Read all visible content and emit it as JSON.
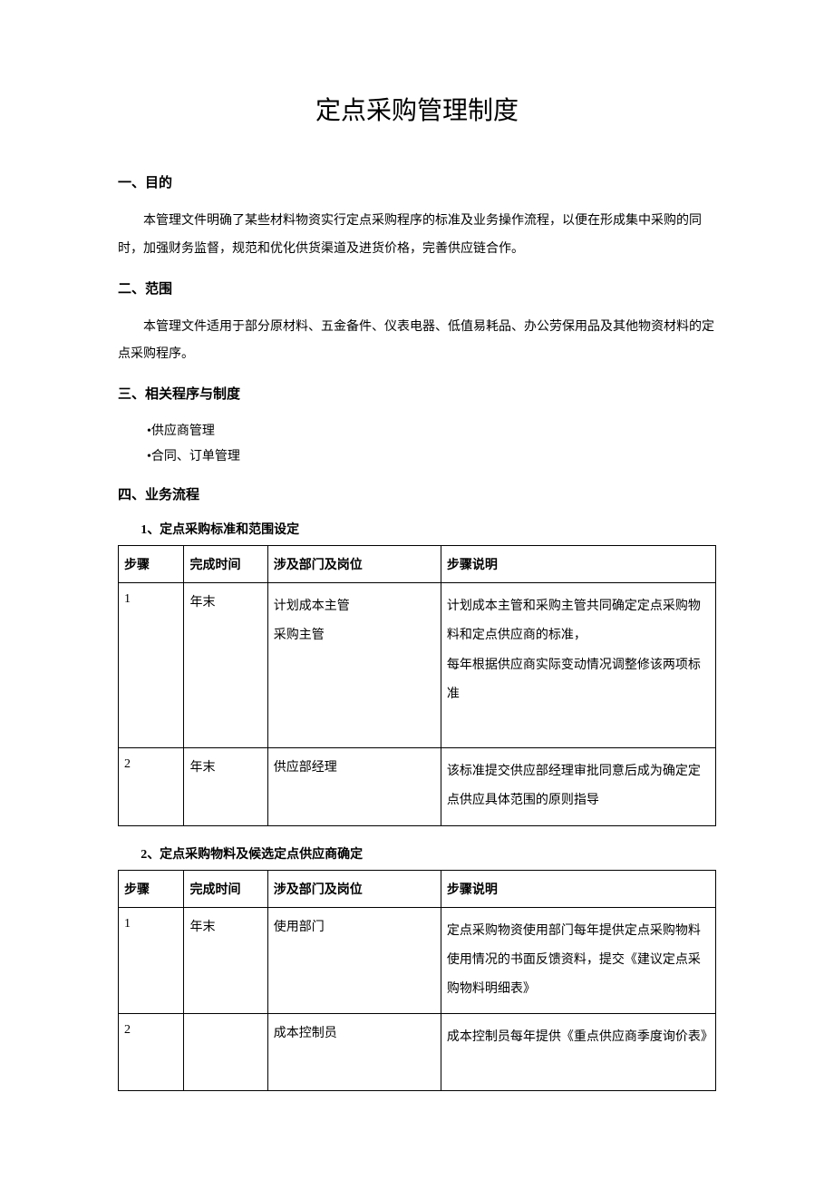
{
  "title": "定点采购管理制度",
  "sections": {
    "s1": {
      "heading": "一、目的",
      "text": "本管理文件明确了某些材料物资实行定点采购程序的标准及业务操作流程，以便在形成集中采购的同时，加强财务监督，规范和优化供货渠道及进货价格，完善供应链合作。"
    },
    "s2": {
      "heading": "二、范围",
      "text": "本管理文件适用于部分原材料、五金备件、仪表电器、低值易耗品、办公劳保用品及其他物资材料的定点采购程序。"
    },
    "s3": {
      "heading": "三、相关程序与制度",
      "bullets": {
        "b1": "•供应商管理",
        "b2": "•合同、订单管理"
      }
    },
    "s4": {
      "heading": "四、业务流程"
    }
  },
  "table1": {
    "title": "1、定点采购标准和范围设定",
    "headers": {
      "h1": "步骤",
      "h2": "完成时间",
      "h3": "涉及部门及岗位",
      "h4": "步骤说明"
    },
    "rows": {
      "r1": {
        "step": "1",
        "time": "年末",
        "dept1": "计划成本主管",
        "dept2": "采购主管",
        "desc1": "计划成本主管和采购主管共同确定定点采购物料和定点供应商的标准，",
        "desc2": "每年根据供应商实际变动情况调整修该两项标准"
      },
      "r2": {
        "step": "2",
        "time": "年末",
        "dept": "供应部经理",
        "desc": "该标准提交供应部经理审批同意后成为确定定点供应具体范围的原则指导"
      }
    }
  },
  "table2": {
    "title": "2、定点采购物料及候选定点供应商确定",
    "headers": {
      "h1": "步骤",
      "h2": "完成时间",
      "h3": "涉及部门及岗位",
      "h4": "步骤说明"
    },
    "rows": {
      "r1": {
        "step": "1",
        "time": "年末",
        "dept": "使用部门",
        "desc": "定点采购物资使用部门每年提供定点采购物料使用情况的书面反馈资料，提交《建议定点采购物料明细表》"
      },
      "r2": {
        "step": "2",
        "time": "",
        "dept": "成本控制员",
        "desc": "成本控制员每年提供《重点供应商季度询价表》"
      }
    }
  }
}
